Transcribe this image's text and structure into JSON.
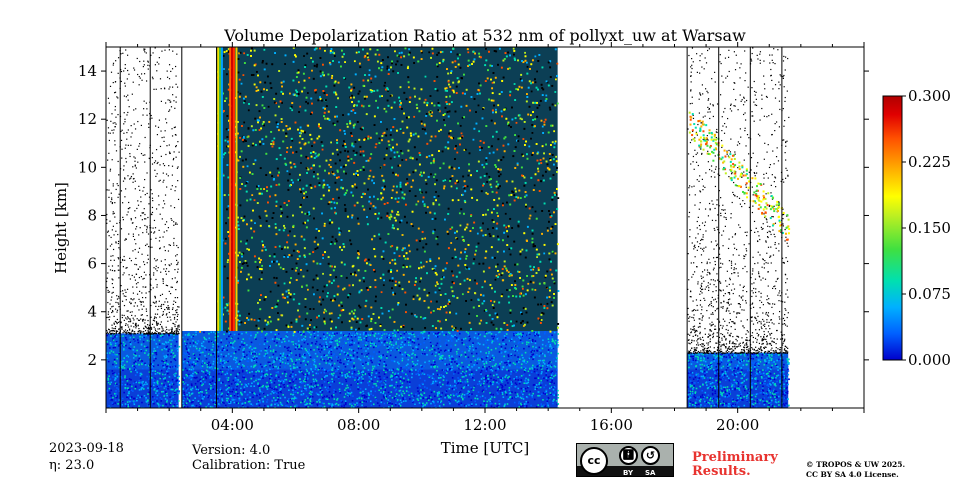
{
  "chart_data": {
    "type": "heatmap",
    "title": "Volume Depolarization Ratio at 532 nm of pollyxt_uw at Warsaw",
    "xlabel": "Time [UTC]",
    "ylabel": "Height [km]",
    "xlim_hours": [
      0,
      24
    ],
    "ylim_km": [
      0,
      15
    ],
    "x_tick_hours": [
      4,
      8,
      12,
      16,
      20
    ],
    "x_tick_labels": [
      "04:00",
      "08:00",
      "12:00",
      "16:00",
      "20:00"
    ],
    "y_ticks": [
      2,
      4,
      6,
      8,
      10,
      12,
      14
    ],
    "y_tick_labels": [
      "2",
      "4",
      "6",
      "8",
      "10",
      "12",
      "14"
    ],
    "colorbar": {
      "min": 0.0,
      "max": 0.3,
      "ticks": [
        0.0,
        0.075,
        0.15,
        0.225,
        0.3
      ],
      "tick_labels": [
        "0.000",
        "0.075",
        "0.150",
        "0.225",
        "0.300"
      ],
      "colormap": [
        "#0000cc",
        "#0060ff",
        "#00b0ff",
        "#00e0b0",
        "#40e040",
        "#c0f020",
        "#ffff00",
        "#ffb000",
        "#ff5000",
        "#e00000",
        "#b00000"
      ]
    },
    "data_segments": [
      {
        "start_h": 0.0,
        "end_h": 2.3,
        "boundary_layer_top_km": 3.1,
        "sparse_signal_top_km": 15
      },
      {
        "start_h": 2.4,
        "end_h": 14.3,
        "boundary_layer_top_km": 3.2,
        "noisy_signal_top_km": 15
      },
      {
        "start_h": 18.4,
        "end_h": 21.6,
        "boundary_layer_top_km": 2.3,
        "cirrus_layer_km": [
          7,
          12.5
        ]
      }
    ],
    "no_data_gaps": [
      [
        2.3,
        2.4
      ],
      [
        14.3,
        18.4
      ],
      [
        21.6,
        24.0
      ]
    ],
    "vertical_markers_h": [
      0.45,
      1.4,
      2.4,
      3.5,
      18.4,
      19.4,
      20.4,
      21.4
    ]
  },
  "footer": {
    "date": "2023-09-18",
    "eta_label": "η: 23.0",
    "version_label": "Version: 4.0",
    "calibration_label": "Calibration: True",
    "preliminary_line1": "Preliminary",
    "preliminary_line2": "Results.",
    "copyright_line1": "© TROPOS & UW 2025.",
    "copyright_line2": "CC BY SA 4.0 License."
  },
  "license_badge": {
    "cc": "cc",
    "by": "BY",
    "sa": "SA"
  }
}
